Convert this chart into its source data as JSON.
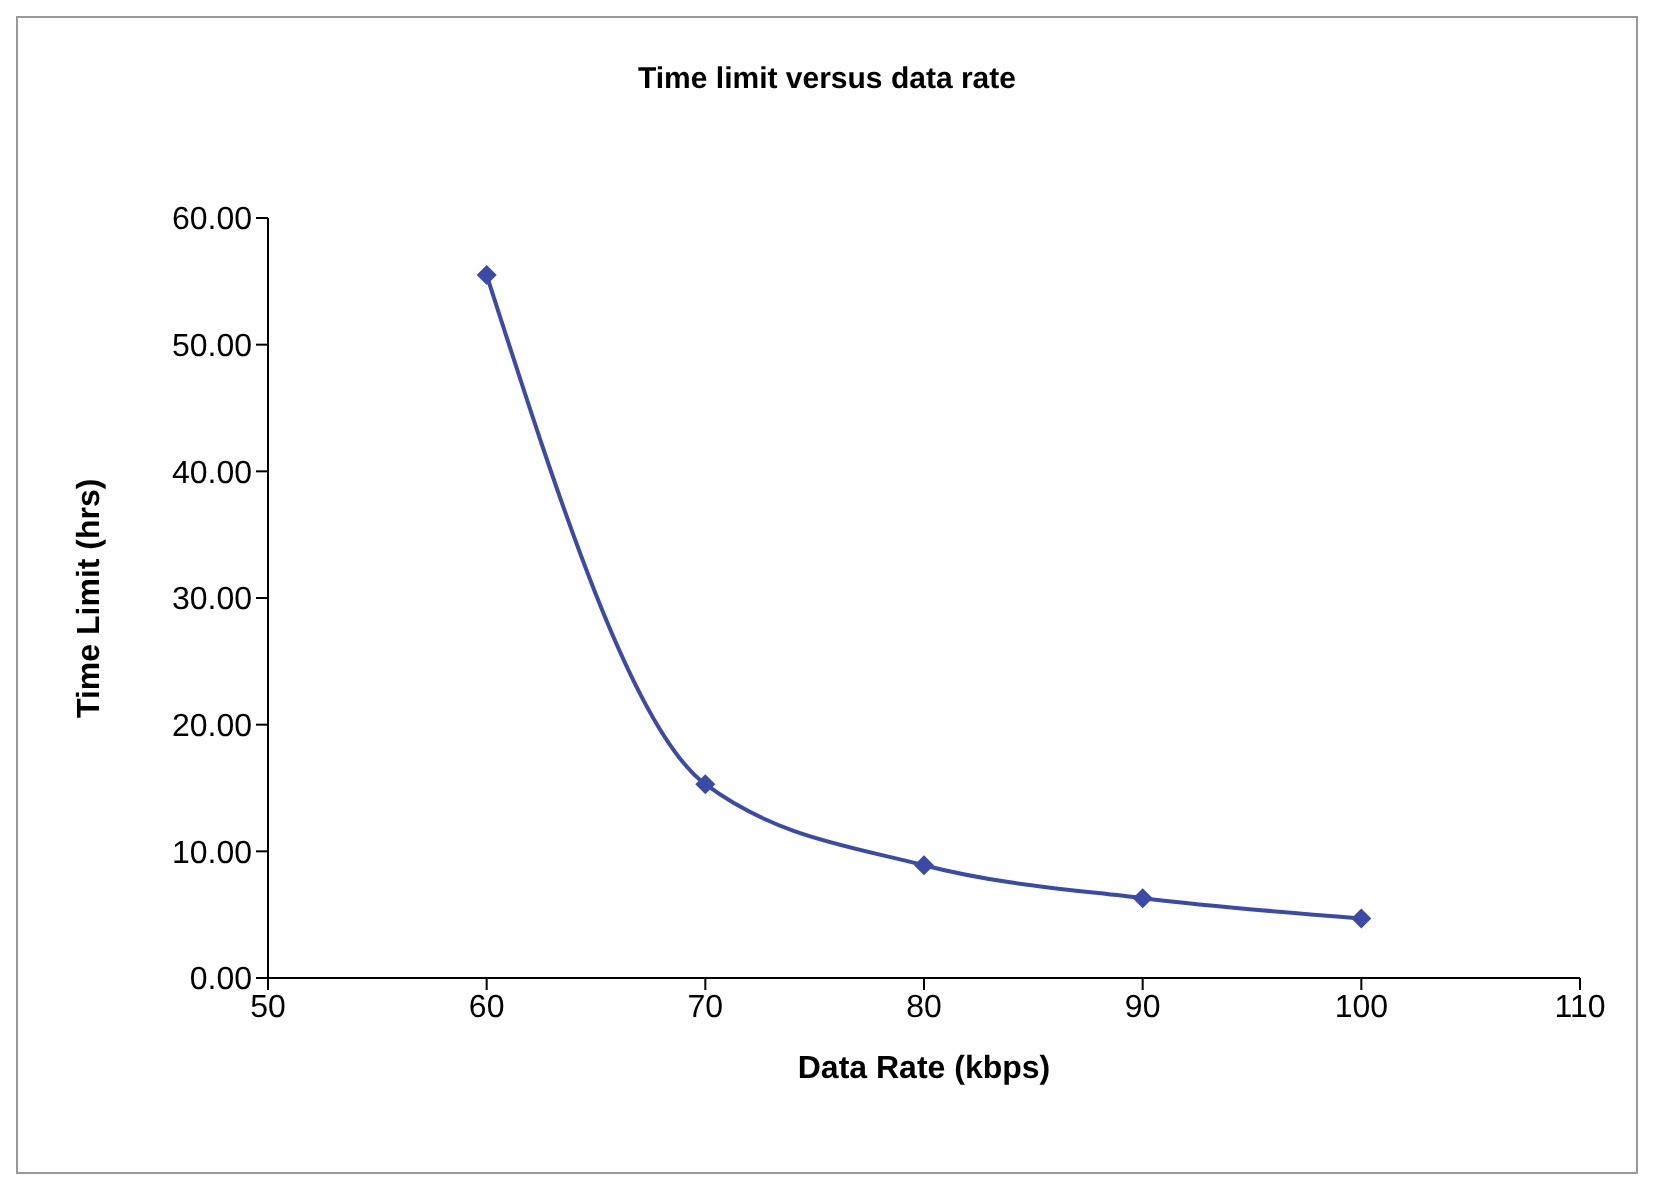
{
  "chart_data": {
    "type": "line",
    "title": "Time limit versus data rate",
    "xlabel": "Data Rate (kbps)",
    "ylabel": "Time Limit (hrs)",
    "x": [
      60,
      70,
      80,
      90,
      100
    ],
    "series": [
      {
        "color": "#3a4aa8",
        "values": [
          55.5,
          15.3,
          8.9,
          6.3,
          4.7
        ]
      }
    ],
    "xlim": [
      50,
      110
    ],
    "xticks": [
      50,
      60,
      70,
      80,
      90,
      100,
      110
    ],
    "ylim": [
      0,
      60
    ],
    "yticks": [
      {
        "value": 0,
        "label": "0.00"
      },
      {
        "value": 10,
        "label": "10.00"
      },
      {
        "value": 20,
        "label": "20.00"
      },
      {
        "value": 30,
        "label": "30.00"
      },
      {
        "value": 40,
        "label": "40.00"
      },
      {
        "value": 50,
        "label": "50.00"
      },
      {
        "value": 60,
        "label": "60.00"
      }
    ],
    "grid": false,
    "legend": false,
    "marker": "diamond",
    "line_style": "solid"
  }
}
